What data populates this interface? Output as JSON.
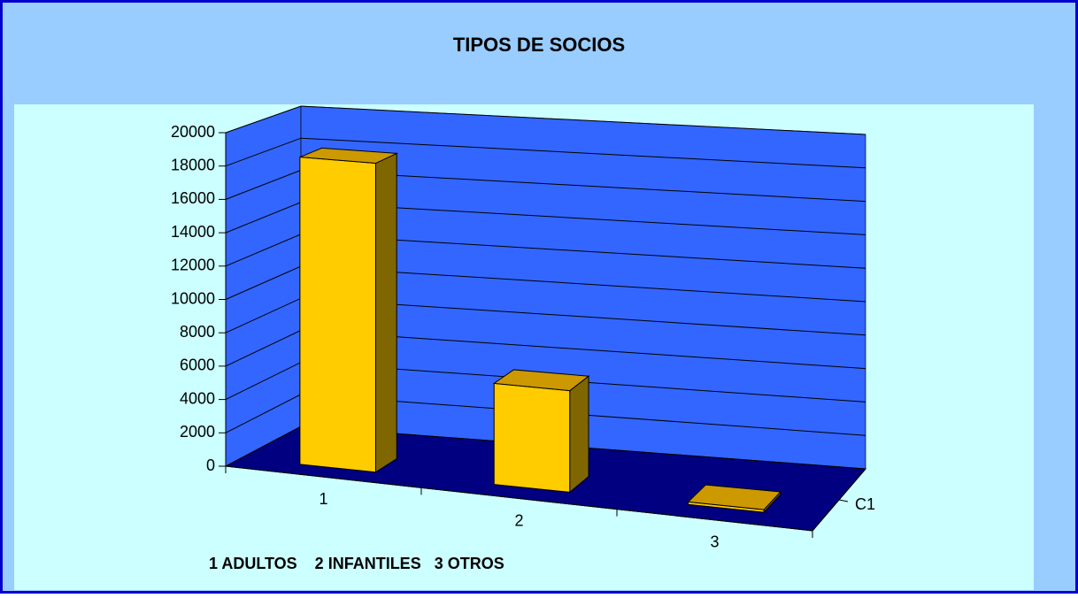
{
  "chart_data": {
    "type": "bar3d",
    "title": "TIPOS DE SOCIOS",
    "categories": [
      "1",
      "2",
      "3"
    ],
    "series": [
      {
        "name": "C1",
        "color": "#ffcc00",
        "values": [
          18500,
          6000,
          150
        ]
      }
    ],
    "ylim": [
      0,
      20000
    ],
    "yticks": [
      0,
      2000,
      4000,
      6000,
      8000,
      10000,
      12000,
      14000,
      16000,
      18000,
      20000
    ],
    "grid": true,
    "annotation": "1 ADULTOS    2 INFANTILES   3 OTROS"
  }
}
